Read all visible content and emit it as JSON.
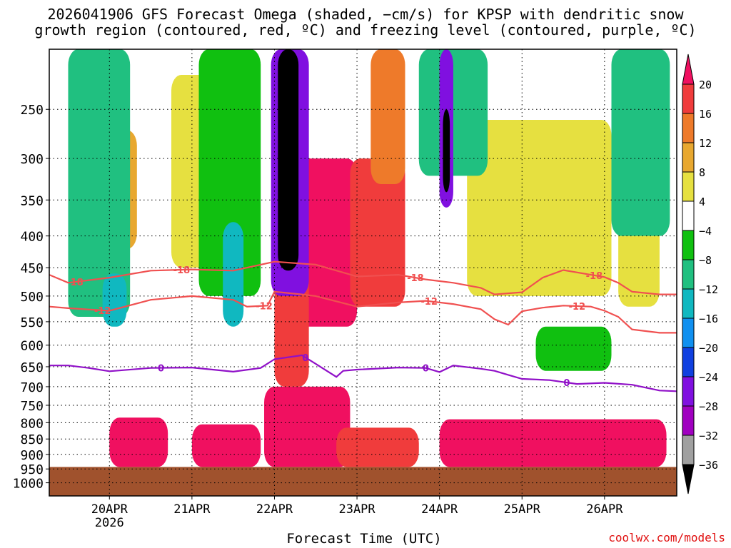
{
  "title": {
    "line1": "2026041906 GFS Forecast Omega (shaded, −cm/s) for KPSP with dendritic snow",
    "line2": "growth region (contoured, red, ºC) and freezing level (contoured, purple, ºC)"
  },
  "x_axis_label": "Forecast Time (UTC)",
  "credit": "coolwx.com/models",
  "chart_data": {
    "type": "heatmap",
    "time_axis": {
      "range_hours": [
        -17.5,
        165
      ],
      "ticks": [
        {
          "hour": 0,
          "label": "20APR",
          "sublabel": "2026"
        },
        {
          "hour": 24,
          "label": "21APR"
        },
        {
          "hour": 48,
          "label": "22APR"
        },
        {
          "hour": 72,
          "label": "23APR"
        },
        {
          "hour": 96,
          "label": "24APR"
        },
        {
          "hour": 120,
          "label": "25APR"
        },
        {
          "hour": 144,
          "label": "26APR"
        }
      ]
    },
    "pressure_axis": {
      "range_hpa": [
        200,
        1050
      ],
      "ticks": [
        250,
        300,
        350,
        400,
        450,
        500,
        550,
        600,
        650,
        700,
        750,
        800,
        850,
        900,
        950,
        1000
      ]
    },
    "ground_level_hpa": 943,
    "colorbar": {
      "labels": [
        "20",
        "16",
        "12",
        "8",
        "4",
        "−4",
        "−8",
        "−12",
        "−16",
        "−20",
        "−24",
        "−28",
        "−32",
        "−36"
      ],
      "colors": [
        "#f01060",
        "#f03c3c",
        "#ee7a2a",
        "#e8a830",
        "#e6e040",
        "#ffffff",
        "#10c010",
        "#20c080",
        "#10b8c0",
        "#1090f0",
        "#1040e0",
        "#8010e0",
        "#a000c0",
        "#a0a0a0",
        "#000000"
      ]
    },
    "omega_blobs": [
      {
        "t0": 0,
        "t1": 17,
        "p0": 785,
        "p1": 943,
        "value": 20
      },
      {
        "t0": 24,
        "t1": 44,
        "p0": 805,
        "p1": 943,
        "value": 20
      },
      {
        "t0": 45,
        "t1": 70,
        "p0": 700,
        "p1": 943,
        "value": 20
      },
      {
        "t0": 66,
        "t1": 90,
        "p0": 815,
        "p1": 943,
        "value": 18
      },
      {
        "t0": 96,
        "t1": 162,
        "p0": 790,
        "p1": 943,
        "value": 20
      },
      {
        "t0": 54,
        "t1": 72,
        "p0": 300,
        "p1": 560,
        "value": 20
      },
      {
        "t0": 70,
        "t1": 86,
        "p0": 300,
        "p1": 520,
        "value": 16
      },
      {
        "t0": 48,
        "t1": 58,
        "p0": 430,
        "p1": 700,
        "value": 18
      },
      {
        "t0": 76,
        "t1": 86,
        "p0": 200,
        "p1": 330,
        "value": 12
      },
      {
        "t0": -3,
        "t1": 8,
        "p0": 270,
        "p1": 420,
        "value": 10
      },
      {
        "t0": 18,
        "t1": 42,
        "p0": 220,
        "p1": 450,
        "value": 7
      },
      {
        "t0": 104,
        "t1": 146,
        "p0": 260,
        "p1": 500,
        "value": 7
      },
      {
        "t0": 148,
        "t1": 160,
        "p0": 300,
        "p1": 520,
        "value": 6
      },
      {
        "t0": 124,
        "t1": 146,
        "p0": 560,
        "p1": 660,
        "value": -7
      },
      {
        "t0": 26,
        "t1": 44,
        "p0": 200,
        "p1": 500,
        "value": -7
      },
      {
        "t0": -12,
        "t1": 6,
        "p0": 200,
        "p1": 540,
        "value": -8
      },
      {
        "t0": 146,
        "t1": 163,
        "p0": 200,
        "p1": 400,
        "value": -9
      },
      {
        "t0": 90,
        "t1": 110,
        "p0": 200,
        "p1": 320,
        "value": -8
      },
      {
        "t0": 33,
        "t1": 39,
        "p0": 380,
        "p1": 560,
        "value": -14
      },
      {
        "t0": -2,
        "t1": 5,
        "p0": 460,
        "p1": 560,
        "value": -13
      },
      {
        "t0": 47,
        "t1": 58,
        "p0": 200,
        "p1": 500,
        "value": -26
      },
      {
        "t0": 96,
        "t1": 100,
        "p0": 200,
        "p1": 360,
        "value": -26
      },
      {
        "t0": 49,
        "t1": 55,
        "p0": 200,
        "p1": 455,
        "value": -37
      },
      {
        "t0": 97,
        "t1": 99,
        "p0": 250,
        "p1": 340,
        "value": -37
      }
    ],
    "isotherms": [
      {
        "label": "-18",
        "color": "#f05050",
        "points": [
          [
            -17.5,
            462
          ],
          [
            -12,
            476
          ],
          [
            0,
            467
          ],
          [
            12,
            455
          ],
          [
            24,
            453
          ],
          [
            36,
            455
          ],
          [
            48,
            440
          ],
          [
            60,
            445
          ],
          [
            72,
            465
          ],
          [
            84,
            462
          ],
          [
            92,
            470
          ],
          [
            100,
            476
          ],
          [
            108,
            485
          ],
          [
            112,
            497
          ],
          [
            120,
            493
          ],
          [
            126,
            467
          ],
          [
            132,
            454
          ],
          [
            140,
            462
          ],
          [
            144,
            466
          ],
          [
            148,
            476
          ],
          [
            152,
            492
          ],
          [
            160,
            497
          ],
          [
            165,
            497
          ]
        ],
        "label_hours": [
          -10,
          21,
          89,
          141
        ]
      },
      {
        "label": "-12",
        "color": "#f05050",
        "points": [
          [
            -17.5,
            520
          ],
          [
            -12,
            523
          ],
          [
            0,
            528
          ],
          [
            12,
            507
          ],
          [
            24,
            500
          ],
          [
            36,
            507
          ],
          [
            40,
            520
          ],
          [
            46,
            518
          ],
          [
            48,
            492
          ],
          [
            56,
            497
          ],
          [
            60,
            500
          ],
          [
            72,
            520
          ],
          [
            84,
            512
          ],
          [
            92,
            509
          ],
          [
            100,
            515
          ],
          [
            108,
            525
          ],
          [
            112,
            545
          ],
          [
            116,
            556
          ],
          [
            120,
            529
          ],
          [
            126,
            522
          ],
          [
            132,
            518
          ],
          [
            140,
            520
          ],
          [
            144,
            528
          ],
          [
            148,
            540
          ],
          [
            152,
            566
          ],
          [
            160,
            573
          ],
          [
            165,
            573
          ]
        ],
        "label_hours": [
          -2,
          45,
          93,
          136
        ]
      },
      {
        "label": "0",
        "color": "#9010c8",
        "points": [
          [
            -17.5,
            647
          ],
          [
            -12,
            647
          ],
          [
            -6,
            653
          ],
          [
            0,
            661
          ],
          [
            12,
            653
          ],
          [
            24,
            652
          ],
          [
            36,
            662
          ],
          [
            44,
            653
          ],
          [
            48,
            632
          ],
          [
            56,
            623
          ],
          [
            60,
            643
          ],
          [
            66,
            675
          ],
          [
            68,
            660
          ],
          [
            72,
            657
          ],
          [
            84,
            652
          ],
          [
            92,
            653
          ],
          [
            96,
            663
          ],
          [
            100,
            647
          ],
          [
            108,
            655
          ],
          [
            112,
            660
          ],
          [
            116,
            670
          ],
          [
            120,
            680
          ],
          [
            128,
            683
          ],
          [
            136,
            693
          ],
          [
            144,
            690
          ],
          [
            152,
            695
          ],
          [
            160,
            710
          ],
          [
            165,
            712
          ]
        ],
        "label_hours": [
          15,
          57,
          92,
          133
        ]
      }
    ]
  }
}
